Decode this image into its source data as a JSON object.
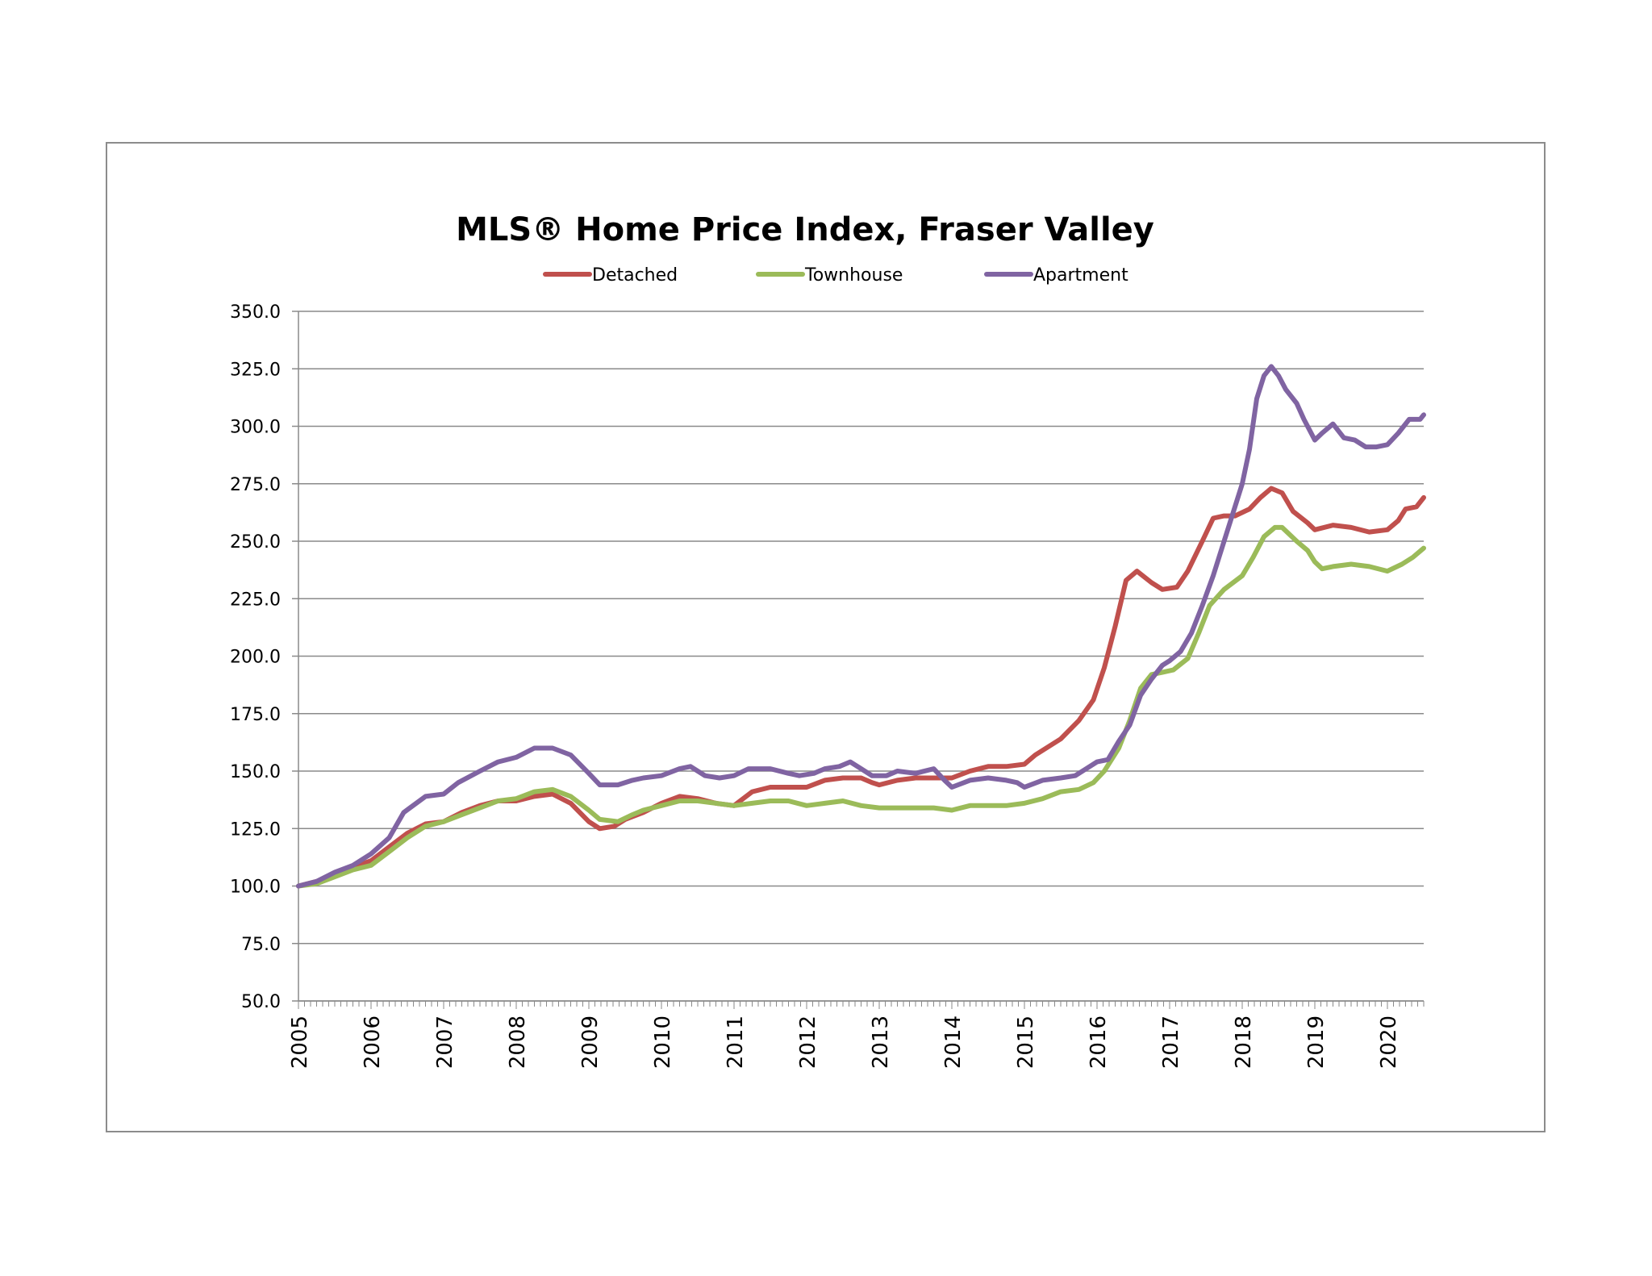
{
  "chart_data": {
    "type": "line",
    "title": "MLS® Home Price Index, Fraser Valley",
    "xlabel": "",
    "ylabel": "",
    "ylim": [
      50,
      350
    ],
    "yticks": [
      "50.0",
      "75.0",
      "100.0",
      "125.0",
      "150.0",
      "175.0",
      "200.0",
      "225.0",
      "250.0",
      "275.0",
      "300.0",
      "325.0",
      "350.0"
    ],
    "xlim": [
      2005,
      2020.5
    ],
    "xticks": [
      "2005",
      "2006",
      "2007",
      "2008",
      "2009",
      "2010",
      "2011",
      "2012",
      "2013",
      "2014",
      "2015",
      "2016",
      "2017",
      "2018",
      "2019",
      "2020"
    ],
    "grid": "horizontal",
    "legend": "top-center",
    "series": [
      {
        "name": "Detached",
        "color": "#c0504d",
        "points": [
          [
            2005.0,
            100
          ],
          [
            2005.25,
            102
          ],
          [
            2005.5,
            105
          ],
          [
            2005.75,
            108
          ],
          [
            2006.0,
            111
          ],
          [
            2006.25,
            117
          ],
          [
            2006.5,
            123
          ],
          [
            2006.75,
            127
          ],
          [
            2007.0,
            128
          ],
          [
            2007.25,
            132
          ],
          [
            2007.5,
            135
          ],
          [
            2007.75,
            137
          ],
          [
            2008.0,
            137
          ],
          [
            2008.25,
            139
          ],
          [
            2008.5,
            140
          ],
          [
            2008.75,
            136
          ],
          [
            2009.0,
            128
          ],
          [
            2009.15,
            125
          ],
          [
            2009.35,
            126
          ],
          [
            2009.5,
            129
          ],
          [
            2009.75,
            132
          ],
          [
            2010.0,
            136
          ],
          [
            2010.25,
            139
          ],
          [
            2010.5,
            138
          ],
          [
            2010.75,
            136
          ],
          [
            2011.0,
            135
          ],
          [
            2011.25,
            141
          ],
          [
            2011.5,
            143
          ],
          [
            2011.75,
            143
          ],
          [
            2012.0,
            143
          ],
          [
            2012.25,
            146
          ],
          [
            2012.5,
            147
          ],
          [
            2012.75,
            147
          ],
          [
            2012.9,
            145
          ],
          [
            2013.0,
            144
          ],
          [
            2013.25,
            146
          ],
          [
            2013.5,
            147
          ],
          [
            2013.75,
            147
          ],
          [
            2014.0,
            147
          ],
          [
            2014.25,
            150
          ],
          [
            2014.5,
            152
          ],
          [
            2014.75,
            152
          ],
          [
            2015.0,
            153
          ],
          [
            2015.15,
            157
          ],
          [
            2015.5,
            164
          ],
          [
            2015.75,
            172
          ],
          [
            2015.95,
            181
          ],
          [
            2016.1,
            195
          ],
          [
            2016.25,
            213
          ],
          [
            2016.4,
            233
          ],
          [
            2016.55,
            237
          ],
          [
            2016.75,
            232
          ],
          [
            2016.9,
            229
          ],
          [
            2017.1,
            230
          ],
          [
            2017.25,
            237
          ],
          [
            2017.45,
            250
          ],
          [
            2017.6,
            260
          ],
          [
            2017.75,
            261
          ],
          [
            2017.9,
            261
          ],
          [
            2018.1,
            264
          ],
          [
            2018.25,
            269
          ],
          [
            2018.4,
            273
          ],
          [
            2018.55,
            271
          ],
          [
            2018.7,
            263
          ],
          [
            2018.9,
            258
          ],
          [
            2019.0,
            255
          ],
          [
            2019.25,
            257
          ],
          [
            2019.5,
            256
          ],
          [
            2019.75,
            254
          ],
          [
            2020.0,
            255
          ],
          [
            2020.15,
            259
          ],
          [
            2020.25,
            264
          ],
          [
            2020.4,
            265
          ],
          [
            2020.5,
            269
          ]
        ]
      },
      {
        "name": "Townhouse",
        "color": "#9bbb59",
        "points": [
          [
            2005.0,
            100
          ],
          [
            2005.25,
            101
          ],
          [
            2005.5,
            104
          ],
          [
            2005.75,
            107
          ],
          [
            2006.0,
            109
          ],
          [
            2006.25,
            115
          ],
          [
            2006.5,
            121
          ],
          [
            2006.75,
            126
          ],
          [
            2007.0,
            128
          ],
          [
            2007.25,
            131
          ],
          [
            2007.5,
            134
          ],
          [
            2007.75,
            137
          ],
          [
            2008.0,
            138
          ],
          [
            2008.25,
            141
          ],
          [
            2008.5,
            142
          ],
          [
            2008.75,
            139
          ],
          [
            2009.0,
            133
          ],
          [
            2009.15,
            129
          ],
          [
            2009.4,
            128
          ],
          [
            2009.6,
            131
          ],
          [
            2009.75,
            133
          ],
          [
            2010.0,
            135
          ],
          [
            2010.25,
            137
          ],
          [
            2010.5,
            137
          ],
          [
            2010.75,
            136
          ],
          [
            2011.0,
            135
          ],
          [
            2011.25,
            136
          ],
          [
            2011.5,
            137
          ],
          [
            2011.75,
            137
          ],
          [
            2012.0,
            135
          ],
          [
            2012.25,
            136
          ],
          [
            2012.5,
            137
          ],
          [
            2012.75,
            135
          ],
          [
            2013.0,
            134
          ],
          [
            2013.25,
            134
          ],
          [
            2013.5,
            134
          ],
          [
            2013.75,
            134
          ],
          [
            2014.0,
            133
          ],
          [
            2014.25,
            135
          ],
          [
            2014.5,
            135
          ],
          [
            2014.75,
            135
          ],
          [
            2015.0,
            136
          ],
          [
            2015.25,
            138
          ],
          [
            2015.5,
            141
          ],
          [
            2015.75,
            142
          ],
          [
            2015.95,
            145
          ],
          [
            2016.1,
            150
          ],
          [
            2016.3,
            160
          ],
          [
            2016.45,
            172
          ],
          [
            2016.6,
            186
          ],
          [
            2016.75,
            192
          ],
          [
            2016.9,
            193
          ],
          [
            2017.05,
            194
          ],
          [
            2017.25,
            199
          ],
          [
            2017.4,
            210
          ],
          [
            2017.55,
            222
          ],
          [
            2017.75,
            229
          ],
          [
            2018.0,
            235
          ],
          [
            2018.15,
            243
          ],
          [
            2018.3,
            252
          ],
          [
            2018.45,
            256
          ],
          [
            2018.55,
            256
          ],
          [
            2018.75,
            250
          ],
          [
            2018.9,
            246
          ],
          [
            2019.0,
            241
          ],
          [
            2019.1,
            238
          ],
          [
            2019.25,
            239
          ],
          [
            2019.5,
            240
          ],
          [
            2019.75,
            239
          ],
          [
            2020.0,
            237
          ],
          [
            2020.2,
            240
          ],
          [
            2020.35,
            243
          ],
          [
            2020.5,
            247
          ]
        ]
      },
      {
        "name": "Apartment",
        "color": "#8064a2",
        "points": [
          [
            2005.0,
            100
          ],
          [
            2005.25,
            102
          ],
          [
            2005.5,
            106
          ],
          [
            2005.75,
            109
          ],
          [
            2006.0,
            114
          ],
          [
            2006.25,
            121
          ],
          [
            2006.45,
            132
          ],
          [
            2006.75,
            139
          ],
          [
            2007.0,
            140
          ],
          [
            2007.2,
            145
          ],
          [
            2007.5,
            150
          ],
          [
            2007.75,
            154
          ],
          [
            2008.0,
            156
          ],
          [
            2008.25,
            160
          ],
          [
            2008.5,
            160
          ],
          [
            2008.75,
            157
          ],
          [
            2009.0,
            149
          ],
          [
            2009.15,
            144
          ],
          [
            2009.4,
            144
          ],
          [
            2009.6,
            146
          ],
          [
            2009.75,
            147
          ],
          [
            2010.0,
            148
          ],
          [
            2010.25,
            151
          ],
          [
            2010.4,
            152
          ],
          [
            2010.6,
            148
          ],
          [
            2010.8,
            147
          ],
          [
            2011.0,
            148
          ],
          [
            2011.2,
            151
          ],
          [
            2011.5,
            151
          ],
          [
            2011.75,
            149
          ],
          [
            2011.9,
            148
          ],
          [
            2012.1,
            149
          ],
          [
            2012.25,
            151
          ],
          [
            2012.45,
            152
          ],
          [
            2012.6,
            154
          ],
          [
            2012.75,
            151
          ],
          [
            2012.9,
            148
          ],
          [
            2013.1,
            148
          ],
          [
            2013.25,
            150
          ],
          [
            2013.5,
            149
          ],
          [
            2013.75,
            151
          ],
          [
            2013.9,
            146
          ],
          [
            2014.0,
            143
          ],
          [
            2014.25,
            146
          ],
          [
            2014.5,
            147
          ],
          [
            2014.75,
            146
          ],
          [
            2014.9,
            145
          ],
          [
            2015.0,
            143
          ],
          [
            2015.25,
            146
          ],
          [
            2015.5,
            147
          ],
          [
            2015.7,
            148
          ],
          [
            2015.85,
            151
          ],
          [
            2016.0,
            154
          ],
          [
            2016.15,
            155
          ],
          [
            2016.3,
            163
          ],
          [
            2016.45,
            170
          ],
          [
            2016.6,
            183
          ],
          [
            2016.75,
            190
          ],
          [
            2016.9,
            196
          ],
          [
            2017.0,
            198
          ],
          [
            2017.15,
            202
          ],
          [
            2017.3,
            210
          ],
          [
            2017.45,
            222
          ],
          [
            2017.6,
            235
          ],
          [
            2017.75,
            250
          ],
          [
            2017.9,
            265
          ],
          [
            2018.0,
            275
          ],
          [
            2018.1,
            290
          ],
          [
            2018.2,
            312
          ],
          [
            2018.3,
            322
          ],
          [
            2018.4,
            326
          ],
          [
            2018.5,
            322
          ],
          [
            2018.6,
            316
          ],
          [
            2018.75,
            310
          ],
          [
            2018.85,
            303
          ],
          [
            2019.0,
            294
          ],
          [
            2019.1,
            297
          ],
          [
            2019.25,
            301
          ],
          [
            2019.4,
            295
          ],
          [
            2019.55,
            294
          ],
          [
            2019.7,
            291
          ],
          [
            2019.85,
            291
          ],
          [
            2020.0,
            292
          ],
          [
            2020.15,
            297
          ],
          [
            2020.3,
            303
          ],
          [
            2020.45,
            303
          ],
          [
            2020.5,
            305
          ]
        ]
      }
    ]
  }
}
